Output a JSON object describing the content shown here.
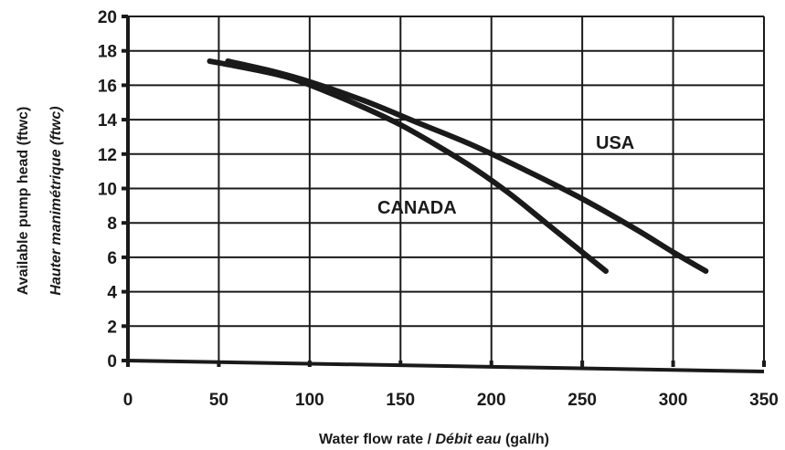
{
  "chart_data": {
    "type": "line",
    "xlabel": {
      "en": "Water flow rate /",
      "fr": "Débit eau",
      "unit": "(gal/h)"
    },
    "ylabel": {
      "en": "Available pump head (ftwc)",
      "fr": "Hauter manimétrique (ftwc)"
    },
    "xlim": [
      0,
      350
    ],
    "ylim": [
      0,
      20
    ],
    "xticks": [
      "0",
      "50",
      "100",
      "150",
      "200",
      "250",
      "300",
      "350"
    ],
    "yticks": [
      "0",
      "2",
      "4",
      "6",
      "8",
      "10",
      "12",
      "14",
      "16",
      "18",
      "20"
    ],
    "grid": true,
    "series": [
      {
        "name": "USA",
        "x": [
          55,
          80,
          100,
          130,
          160,
          190,
          220,
          250,
          280,
          300,
          318
        ],
        "y": [
          17.4,
          16.8,
          16.2,
          15.1,
          13.8,
          12.5,
          11.0,
          9.4,
          7.6,
          6.3,
          5.2
        ]
      },
      {
        "name": "CANADA",
        "x": [
          45,
          70,
          90,
          110,
          130,
          150,
          170,
          190,
          210,
          230,
          250,
          263
        ],
        "y": [
          17.4,
          16.9,
          16.4,
          15.6,
          14.7,
          13.7,
          12.5,
          11.2,
          9.7,
          8.0,
          6.3,
          5.2
        ]
      }
    ]
  }
}
